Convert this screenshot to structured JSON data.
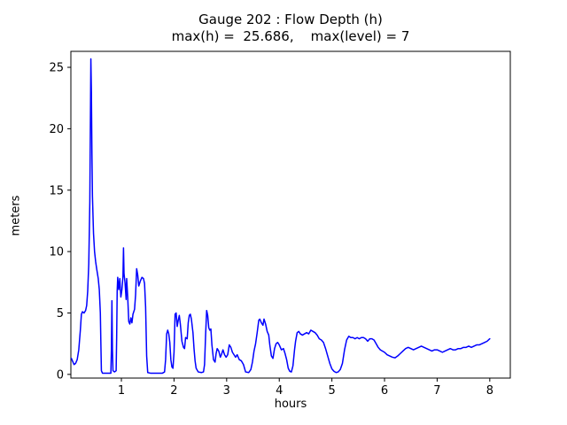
{
  "chart_data": {
    "type": "line",
    "title": "Gauge 202 : Flow Depth (h)",
    "subtitle": "max(h) =  25.686,    max(level) = 7",
    "xlabel": "hours",
    "ylabel": "meters",
    "max_h": 25.686,
    "max_level": 7,
    "line_color": "#0000ff",
    "axis_color": "#000000",
    "background_color": "#ffffff",
    "xlim": [
      0.04,
      8.39
    ],
    "ylim": [
      -0.3,
      26.3
    ],
    "xticks": [
      1,
      2,
      3,
      4,
      5,
      6,
      7,
      8
    ],
    "yticks": [
      0,
      5,
      10,
      15,
      20,
      25
    ],
    "grid": false,
    "legend": "none",
    "points": [
      [
        0.05,
        1.3
      ],
      [
        0.07,
        1.1
      ],
      [
        0.1,
        0.8
      ],
      [
        0.13,
        0.9
      ],
      [
        0.16,
        1.2
      ],
      [
        0.19,
        2.0
      ],
      [
        0.22,
        3.6
      ],
      [
        0.24,
        4.9
      ],
      [
        0.26,
        5.1
      ],
      [
        0.29,
        5.0
      ],
      [
        0.32,
        5.2
      ],
      [
        0.34,
        5.6
      ],
      [
        0.36,
        6.8
      ],
      [
        0.38,
        9.0
      ],
      [
        0.4,
        14.0
      ],
      [
        0.41,
        20.0
      ],
      [
        0.42,
        25.686
      ],
      [
        0.43,
        23.0
      ],
      [
        0.44,
        18.0
      ],
      [
        0.45,
        14.5
      ],
      [
        0.47,
        11.5
      ],
      [
        0.49,
        10.0
      ],
      [
        0.51,
        9.2
      ],
      [
        0.53,
        8.6
      ],
      [
        0.56,
        7.8
      ],
      [
        0.58,
        6.9
      ],
      [
        0.6,
        5.0
      ],
      [
        0.61,
        2.5
      ],
      [
        0.62,
        0.3
      ],
      [
        0.64,
        0.1
      ],
      [
        0.7,
        0.1
      ],
      [
        0.76,
        0.1
      ],
      [
        0.8,
        0.1
      ],
      [
        0.81,
        2.0
      ],
      [
        0.82,
        6.0
      ],
      [
        0.83,
        2.0
      ],
      [
        0.84,
        0.3
      ],
      [
        0.87,
        0.2
      ],
      [
        0.9,
        0.3
      ],
      [
        0.91,
        3.0
      ],
      [
        0.92,
        6.8
      ],
      [
        0.93,
        7.9
      ],
      [
        0.95,
        6.9
      ],
      [
        0.97,
        7.8
      ],
      [
        0.99,
        6.3
      ],
      [
        1.01,
        6.9
      ],
      [
        1.03,
        8.0
      ],
      [
        1.04,
        10.3
      ],
      [
        1.05,
        8.2
      ],
      [
        1.07,
        7.4
      ],
      [
        1.09,
        6.1
      ],
      [
        1.1,
        7.8
      ],
      [
        1.12,
        6.3
      ],
      [
        1.14,
        4.3
      ],
      [
        1.16,
        4.1
      ],
      [
        1.18,
        4.6
      ],
      [
        1.2,
        4.2
      ],
      [
        1.22,
        4.9
      ],
      [
        1.25,
        5.3
      ],
      [
        1.27,
        6.5
      ],
      [
        1.29,
        8.6
      ],
      [
        1.31,
        8.1
      ],
      [
        1.33,
        7.2
      ],
      [
        1.36,
        7.6
      ],
      [
        1.39,
        7.9
      ],
      [
        1.42,
        7.8
      ],
      [
        1.44,
        7.4
      ],
      [
        1.46,
        5.5
      ],
      [
        1.48,
        1.5
      ],
      [
        1.5,
        0.15
      ],
      [
        1.55,
        0.1
      ],
      [
        1.62,
        0.1
      ],
      [
        1.7,
        0.1
      ],
      [
        1.78,
        0.1
      ],
      [
        1.82,
        0.2
      ],
      [
        1.84,
        1.2
      ],
      [
        1.86,
        3.3
      ],
      [
        1.88,
        3.6
      ],
      [
        1.9,
        3.3
      ],
      [
        1.92,
        2.6
      ],
      [
        1.94,
        1.2
      ],
      [
        1.96,
        0.6
      ],
      [
        1.98,
        0.5
      ],
      [
        2.0,
        1.8
      ],
      [
        2.02,
        4.9
      ],
      [
        2.04,
        5.0
      ],
      [
        2.06,
        3.9
      ],
      [
        2.08,
        4.4
      ],
      [
        2.1,
        4.8
      ],
      [
        2.12,
        4.1
      ],
      [
        2.15,
        2.7
      ],
      [
        2.18,
        2.2
      ],
      [
        2.2,
        2.1
      ],
      [
        2.22,
        3.0
      ],
      [
        2.25,
        2.9
      ],
      [
        2.27,
        4.2
      ],
      [
        2.29,
        4.8
      ],
      [
        2.31,
        4.9
      ],
      [
        2.33,
        4.5
      ],
      [
        2.36,
        3.4
      ],
      [
        2.38,
        2.1
      ],
      [
        2.4,
        1.1
      ],
      [
        2.42,
        0.5
      ],
      [
        2.46,
        0.2
      ],
      [
        2.52,
        0.15
      ],
      [
        2.56,
        0.2
      ],
      [
        2.58,
        0.8
      ],
      [
        2.6,
        3.2
      ],
      [
        2.62,
        5.2
      ],
      [
        2.64,
        4.8
      ],
      [
        2.66,
        3.8
      ],
      [
        2.68,
        3.6
      ],
      [
        2.7,
        3.7
      ],
      [
        2.72,
        2.4
      ],
      [
        2.75,
        1.2
      ],
      [
        2.78,
        1.0
      ],
      [
        2.8,
        1.7
      ],
      [
        2.82,
        2.1
      ],
      [
        2.85,
        1.9
      ],
      [
        2.88,
        1.4
      ],
      [
        2.9,
        1.6
      ],
      [
        2.93,
        2.0
      ],
      [
        2.96,
        1.6
      ],
      [
        2.99,
        1.4
      ],
      [
        3.02,
        1.6
      ],
      [
        3.05,
        2.4
      ],
      [
        3.08,
        2.2
      ],
      [
        3.11,
        1.8
      ],
      [
        3.14,
        1.6
      ],
      [
        3.17,
        1.4
      ],
      [
        3.2,
        1.6
      ],
      [
        3.24,
        1.2
      ],
      [
        3.28,
        1.1
      ],
      [
        3.32,
        0.8
      ],
      [
        3.36,
        0.2
      ],
      [
        3.42,
        0.15
      ],
      [
        3.46,
        0.4
      ],
      [
        3.49,
        1.0
      ],
      [
        3.52,
        1.9
      ],
      [
        3.55,
        2.5
      ],
      [
        3.58,
        3.4
      ],
      [
        3.61,
        4.4
      ],
      [
        3.63,
        4.5
      ],
      [
        3.66,
        4.2
      ],
      [
        3.69,
        4.0
      ],
      [
        3.71,
        4.5
      ],
      [
        3.74,
        4.1
      ],
      [
        3.77,
        3.5
      ],
      [
        3.8,
        3.2
      ],
      [
        3.82,
        2.4
      ],
      [
        3.85,
        1.5
      ],
      [
        3.88,
        1.3
      ],
      [
        3.91,
        2.1
      ],
      [
        3.94,
        2.5
      ],
      [
        3.97,
        2.6
      ],
      [
        4.0,
        2.4
      ],
      [
        4.04,
        2.0
      ],
      [
        4.08,
        2.1
      ],
      [
        4.11,
        1.7
      ],
      [
        4.14,
        1.2
      ],
      [
        4.17,
        0.5
      ],
      [
        4.2,
        0.25
      ],
      [
        4.23,
        0.2
      ],
      [
        4.26,
        0.7
      ],
      [
        4.29,
        2.0
      ],
      [
        4.31,
        2.7
      ],
      [
        4.34,
        3.4
      ],
      [
        4.37,
        3.5
      ],
      [
        4.4,
        3.3
      ],
      [
        4.44,
        3.2
      ],
      [
        4.48,
        3.3
      ],
      [
        4.52,
        3.4
      ],
      [
        4.56,
        3.3
      ],
      [
        4.6,
        3.6
      ],
      [
        4.64,
        3.5
      ],
      [
        4.68,
        3.4
      ],
      [
        4.72,
        3.2
      ],
      [
        4.76,
        2.9
      ],
      [
        4.8,
        2.8
      ],
      [
        4.84,
        2.6
      ],
      [
        4.88,
        2.1
      ],
      [
        4.92,
        1.5
      ],
      [
        4.96,
        0.9
      ],
      [
        5.0,
        0.45
      ],
      [
        5.04,
        0.25
      ],
      [
        5.08,
        0.15
      ],
      [
        5.12,
        0.2
      ],
      [
        5.16,
        0.4
      ],
      [
        5.2,
        0.9
      ],
      [
        5.24,
        2.0
      ],
      [
        5.28,
        2.8
      ],
      [
        5.32,
        3.1
      ],
      [
        5.36,
        3.0
      ],
      [
        5.4,
        3.0
      ],
      [
        5.44,
        2.9
      ],
      [
        5.48,
        3.0
      ],
      [
        5.52,
        2.9
      ],
      [
        5.56,
        3.0
      ],
      [
        5.6,
        3.0
      ],
      [
        5.64,
        2.9
      ],
      [
        5.68,
        2.7
      ],
      [
        5.72,
        2.9
      ],
      [
        5.76,
        2.9
      ],
      [
        5.8,
        2.8
      ],
      [
        5.84,
        2.5
      ],
      [
        5.88,
        2.2
      ],
      [
        5.92,
        2.0
      ],
      [
        5.96,
        1.9
      ],
      [
        6.0,
        1.8
      ],
      [
        6.05,
        1.6
      ],
      [
        6.1,
        1.5
      ],
      [
        6.15,
        1.4
      ],
      [
        6.2,
        1.35
      ],
      [
        6.25,
        1.5
      ],
      [
        6.3,
        1.7
      ],
      [
        6.35,
        1.9
      ],
      [
        6.4,
        2.1
      ],
      [
        6.45,
        2.2
      ],
      [
        6.5,
        2.1
      ],
      [
        6.55,
        2.0
      ],
      [
        6.6,
        2.1
      ],
      [
        6.65,
        2.2
      ],
      [
        6.7,
        2.3
      ],
      [
        6.75,
        2.2
      ],
      [
        6.8,
        2.1
      ],
      [
        6.85,
        2.0
      ],
      [
        6.9,
        1.9
      ],
      [
        6.95,
        2.0
      ],
      [
        7.0,
        2.0
      ],
      [
        7.05,
        1.9
      ],
      [
        7.1,
        1.8
      ],
      [
        7.15,
        1.9
      ],
      [
        7.2,
        2.0
      ],
      [
        7.25,
        2.1
      ],
      [
        7.3,
        2.0
      ],
      [
        7.35,
        2.0
      ],
      [
        7.4,
        2.1
      ],
      [
        7.45,
        2.1
      ],
      [
        7.5,
        2.2
      ],
      [
        7.55,
        2.2
      ],
      [
        7.6,
        2.3
      ],
      [
        7.65,
        2.2
      ],
      [
        7.7,
        2.3
      ],
      [
        7.75,
        2.4
      ],
      [
        7.8,
        2.4
      ],
      [
        7.85,
        2.5
      ],
      [
        7.9,
        2.6
      ],
      [
        7.95,
        2.7
      ],
      [
        8.0,
        2.9
      ]
    ]
  }
}
